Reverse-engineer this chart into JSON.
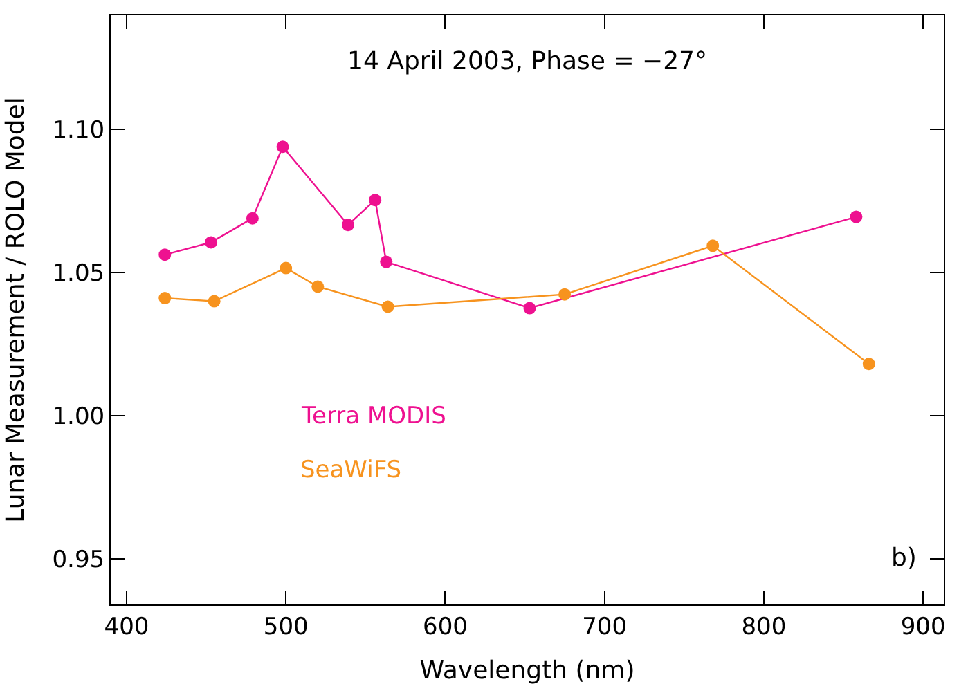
{
  "chart_data": {
    "type": "line",
    "xlabel": "Wavelength (nm)",
    "ylabel": "Lunar Measurement / ROLO Model",
    "xlim": [
      390,
      913
    ],
    "xticks": [
      400,
      500,
      600,
      700,
      800,
      900
    ],
    "ylim": [
      0.934,
      1.14
    ],
    "yticks": [
      {
        "value": 0.95,
        "label": "0.95"
      },
      {
        "value": 1.0,
        "label": "1.00"
      },
      {
        "value": 1.05,
        "label": "1.05"
      },
      {
        "value": 1.1,
        "label": "1.10"
      }
    ],
    "marker": "circle",
    "line_style": "solid",
    "legend": false,
    "annotations": [
      "14 April 2003, Phase = −27°",
      "b)"
    ],
    "series": [
      {
        "name": "Terra MODIS",
        "color": "#ee1190",
        "x": [
          424,
          453,
          479,
          498,
          539,
          556,
          563,
          653,
          858
        ],
        "values": [
          1.0563,
          1.0606,
          1.069,
          1.094,
          1.0667,
          1.0754,
          1.0538,
          1.0376,
          1.0695
        ]
      },
      {
        "name": "SeaWiFS",
        "color": "#f7931e",
        "x": [
          424,
          455,
          500,
          520,
          564,
          675,
          768,
          866
        ],
        "values": [
          1.0411,
          1.04,
          1.0516,
          1.0451,
          1.0381,
          1.0424,
          1.0594,
          1.0181
        ]
      }
    ]
  }
}
